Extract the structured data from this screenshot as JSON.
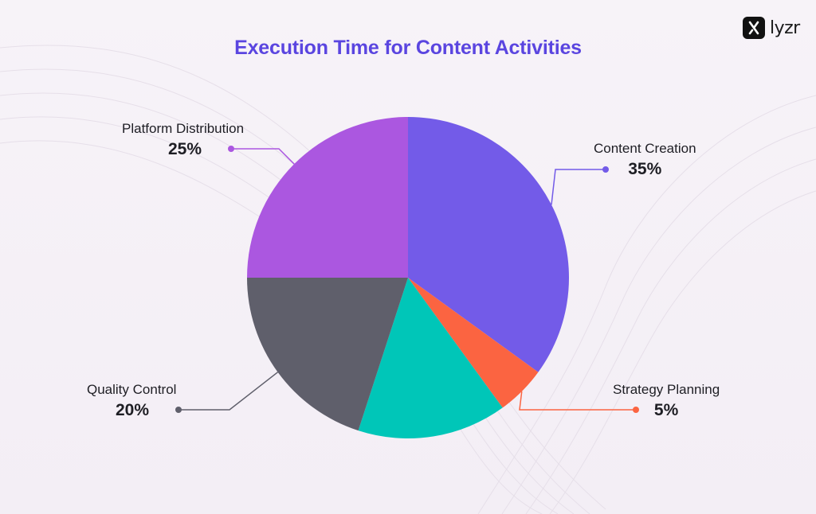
{
  "brand": {
    "name": "lyzr"
  },
  "chart_data": {
    "type": "pie",
    "title": "Execution Time for Content Activities",
    "slices": [
      {
        "label": "Content Creation",
        "value": 35,
        "display": "35%",
        "color": "#735be8"
      },
      {
        "label": "Strategy Planning",
        "value": 5,
        "display": "5%",
        "color": "#fb6441"
      },
      {
        "label": "",
        "value": 15,
        "display": "",
        "color": "#00c6b8"
      },
      {
        "label": "Quality Control",
        "value": 20,
        "display": "20%",
        "color": "#5f5f6b"
      },
      {
        "label": "Platform Distribution",
        "value": 25,
        "display": "25%",
        "color": "#ab57e0"
      }
    ]
  }
}
